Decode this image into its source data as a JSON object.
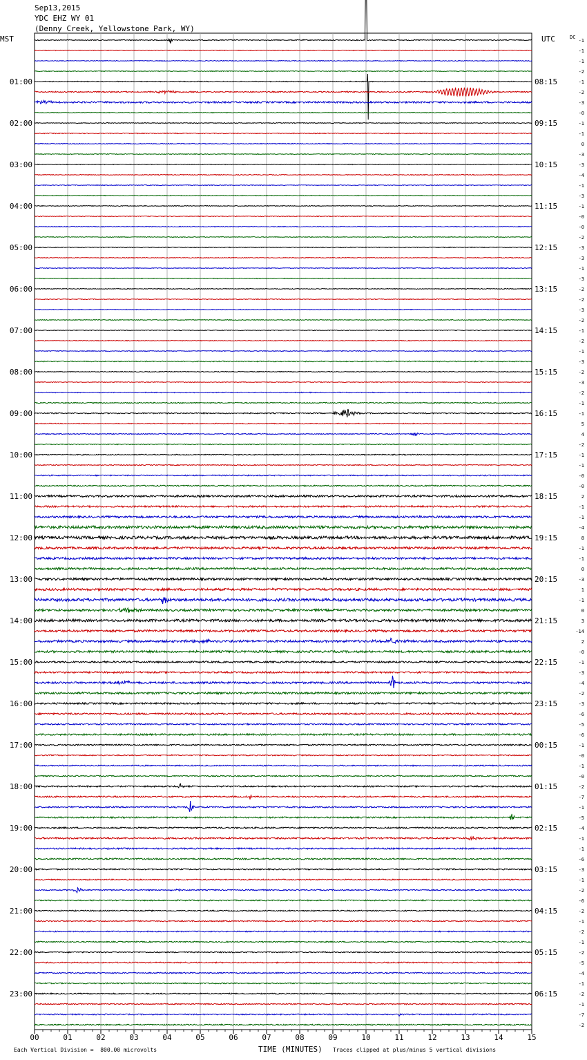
{
  "header": {
    "date": "Sep13,2015",
    "station": "YDC EHZ WY 01",
    "location": "(Denny Creek, Yellowstone Park, WY)"
  },
  "labels": {
    "left_tz": "MST",
    "right_tz": "UTC",
    "dc": "DC"
  },
  "footer": {
    "scale_note": "Each Vertical Division =  800.00 microvolts",
    "xlabel": "TIME (MINUTES)",
    "clip_note": "Traces clipped at plus/minus 5 vertical divisions"
  },
  "colors": {
    "trace_cycle": [
      "#000000",
      "#cc0000",
      "#0000cc",
      "#006600"
    ],
    "grid": "#a0a0a0"
  },
  "chart_data": {
    "type": "line",
    "title": "Sep13,2015",
    "subtitle": "YDC EHZ WY 01",
    "xlabel": "TIME (MINUTES)",
    "xlim": [
      0,
      15
    ],
    "x_ticks": [
      "00",
      "01",
      "02",
      "03",
      "04",
      "05",
      "06",
      "07",
      "08",
      "09",
      "10",
      "11",
      "12",
      "13",
      "14",
      "15"
    ],
    "rows_per_hour": 4,
    "left_hour_labels": [
      "01:00",
      "02:00",
      "03:00",
      "04:00",
      "05:00",
      "06:00",
      "07:00",
      "08:00",
      "09:00",
      "10:00",
      "11:00",
      "12:00",
      "13:00",
      "14:00",
      "15:00",
      "16:00",
      "17:00",
      "18:00",
      "19:00",
      "20:00",
      "21:00",
      "22:00",
      "23:00"
    ],
    "right_hour_labels": [
      "08:15",
      "09:15",
      "10:15",
      "11:15",
      "12:15",
      "13:15",
      "14:15",
      "15:15",
      "16:15",
      "17:15",
      "18:15",
      "19:15",
      "20:15",
      "21:15",
      "22:15",
      "23:15",
      "00:15",
      "01:15",
      "02:15",
      "03:15",
      "04:15",
      "05:15",
      "06:15"
    ],
    "dc_offsets": [
      "-1",
      "-1",
      "-1",
      "-2",
      "-1",
      "-2",
      "-3",
      "-0",
      "-1",
      "-1",
      "0",
      "-3",
      "-3",
      "-4",
      "-1",
      "-3",
      "-1",
      "-0",
      "-0",
      "-2",
      "-3",
      "-3",
      "-1",
      "-3",
      "-2",
      "-2",
      "-3",
      "-2",
      "-1",
      "-2",
      "-1",
      "-3",
      "-2",
      "-3",
      "-2",
      "-1",
      "-1",
      "5",
      "4",
      "-2",
      "-1",
      "-1",
      "-0",
      "-0",
      "2",
      "-1",
      "-1",
      "-4",
      "8",
      "-1",
      "-1",
      "0",
      "-3",
      "1",
      "-1",
      "0",
      "3",
      "-14",
      "2",
      "-0",
      "-1",
      "-3",
      "-4",
      "-2",
      "-3",
      "-6",
      "-5",
      "-6",
      "-1",
      "-0",
      "-1",
      "-0",
      "-2",
      "-7",
      "-1",
      "-5",
      "-4",
      "-1",
      "-1",
      "-6",
      "-3",
      "-1",
      "-2",
      "-6",
      "-2",
      "-1",
      "-2",
      "-1",
      "-2",
      "-5",
      "-4",
      "-1",
      "-2",
      "-1",
      "-7",
      "-2"
    ],
    "row_noise": [
      0.6,
      0.5,
      0.5,
      0.5,
      0.6,
      0.8,
      1.2,
      0.5,
      0.5,
      0.6,
      0.5,
      0.5,
      0.5,
      0.5,
      0.5,
      0.5,
      0.5,
      0.5,
      0.5,
      0.5,
      0.5,
      0.5,
      0.5,
      0.5,
      0.5,
      0.5,
      0.5,
      0.5,
      0.5,
      0.5,
      0.5,
      0.7,
      0.5,
      0.5,
      0.6,
      0.7,
      0.8,
      0.6,
      0.6,
      0.6,
      0.7,
      0.6,
      0.8,
      0.8,
      1.4,
      1.2,
      1.4,
      2.0,
      2.0,
      1.6,
      1.5,
      1.5,
      1.6,
      1.6,
      2.0,
      1.6,
      1.8,
      1.5,
      1.6,
      1.5,
      1.2,
      1.2,
      1.4,
      1.4,
      1.2,
      1.2,
      1.0,
      1.2,
      0.9,
      0.8,
      0.8,
      0.8,
      1.0,
      1.0,
      1.0,
      1.0,
      1.0,
      1.2,
      1.0,
      1.0,
      0.9,
      0.8,
      0.8,
      0.8,
      0.8,
      0.8,
      0.8,
      0.8,
      0.8,
      0.8,
      0.8,
      0.8,
      0.8,
      0.8,
      0.8,
      0.8
    ],
    "events": [
      {
        "row": 0,
        "minute": 4.1,
        "amp": 7,
        "dur": 0.1,
        "kind": "spike"
      },
      {
        "row": 0,
        "minute": 10.0,
        "amp": 60,
        "dur": 0.02,
        "kind": "spike_up"
      },
      {
        "row": 4,
        "minute": 10.05,
        "amp": 55,
        "dur": 0.15,
        "kind": "spike_down"
      },
      {
        "row": 5,
        "minute": 12.9,
        "amp": 6,
        "dur": 2.0,
        "kind": "wave"
      },
      {
        "row": 5,
        "minute": 4.0,
        "amp": 2,
        "dur": 1.5,
        "kind": "burst"
      },
      {
        "row": 6,
        "minute": 0.3,
        "amp": 2.5,
        "dur": 1.0,
        "kind": "burst"
      },
      {
        "row": 36,
        "minute": 9.4,
        "amp": 7,
        "dur": 0.9,
        "kind": "burst"
      },
      {
        "row": 38,
        "minute": 11.5,
        "amp": 4,
        "dur": 0.3,
        "kind": "burst"
      },
      {
        "row": 54,
        "minute": 3.9,
        "amp": 8,
        "dur": 0.3,
        "kind": "burst"
      },
      {
        "row": 55,
        "minute": 2.8,
        "amp": 4,
        "dur": 0.9,
        "kind": "burst"
      },
      {
        "row": 58,
        "minute": 10.8,
        "amp": 4,
        "dur": 1.2,
        "kind": "burst"
      },
      {
        "row": 58,
        "minute": 5.2,
        "amp": 3,
        "dur": 1.5,
        "kind": "burst"
      },
      {
        "row": 62,
        "minute": 10.8,
        "amp": 14,
        "dur": 0.15,
        "kind": "spike"
      },
      {
        "row": 62,
        "minute": 2.7,
        "amp": 3,
        "dur": 1.0,
        "kind": "burst"
      },
      {
        "row": 74,
        "minute": 4.7,
        "amp": 13,
        "dur": 0.15,
        "kind": "spike"
      },
      {
        "row": 75,
        "minute": 14.4,
        "amp": 6,
        "dur": 0.2,
        "kind": "spike"
      },
      {
        "row": 73,
        "minute": 6.5,
        "amp": 4,
        "dur": 0.15,
        "kind": "spike"
      },
      {
        "row": 72,
        "minute": 4.4,
        "amp": 4,
        "dur": 0.2,
        "kind": "spike"
      },
      {
        "row": 77,
        "minute": 13.2,
        "amp": 4,
        "dur": 0.4,
        "kind": "burst"
      },
      {
        "row": 82,
        "minute": 1.3,
        "amp": 7,
        "dur": 0.2,
        "kind": "spike"
      },
      {
        "row": 82,
        "minute": 4.3,
        "amp": 5,
        "dur": 0.2,
        "kind": "spike"
      },
      {
        "row": 94,
        "minute": 11.0,
        "amp": 3,
        "dur": 0.3,
        "kind": "burst"
      }
    ]
  }
}
